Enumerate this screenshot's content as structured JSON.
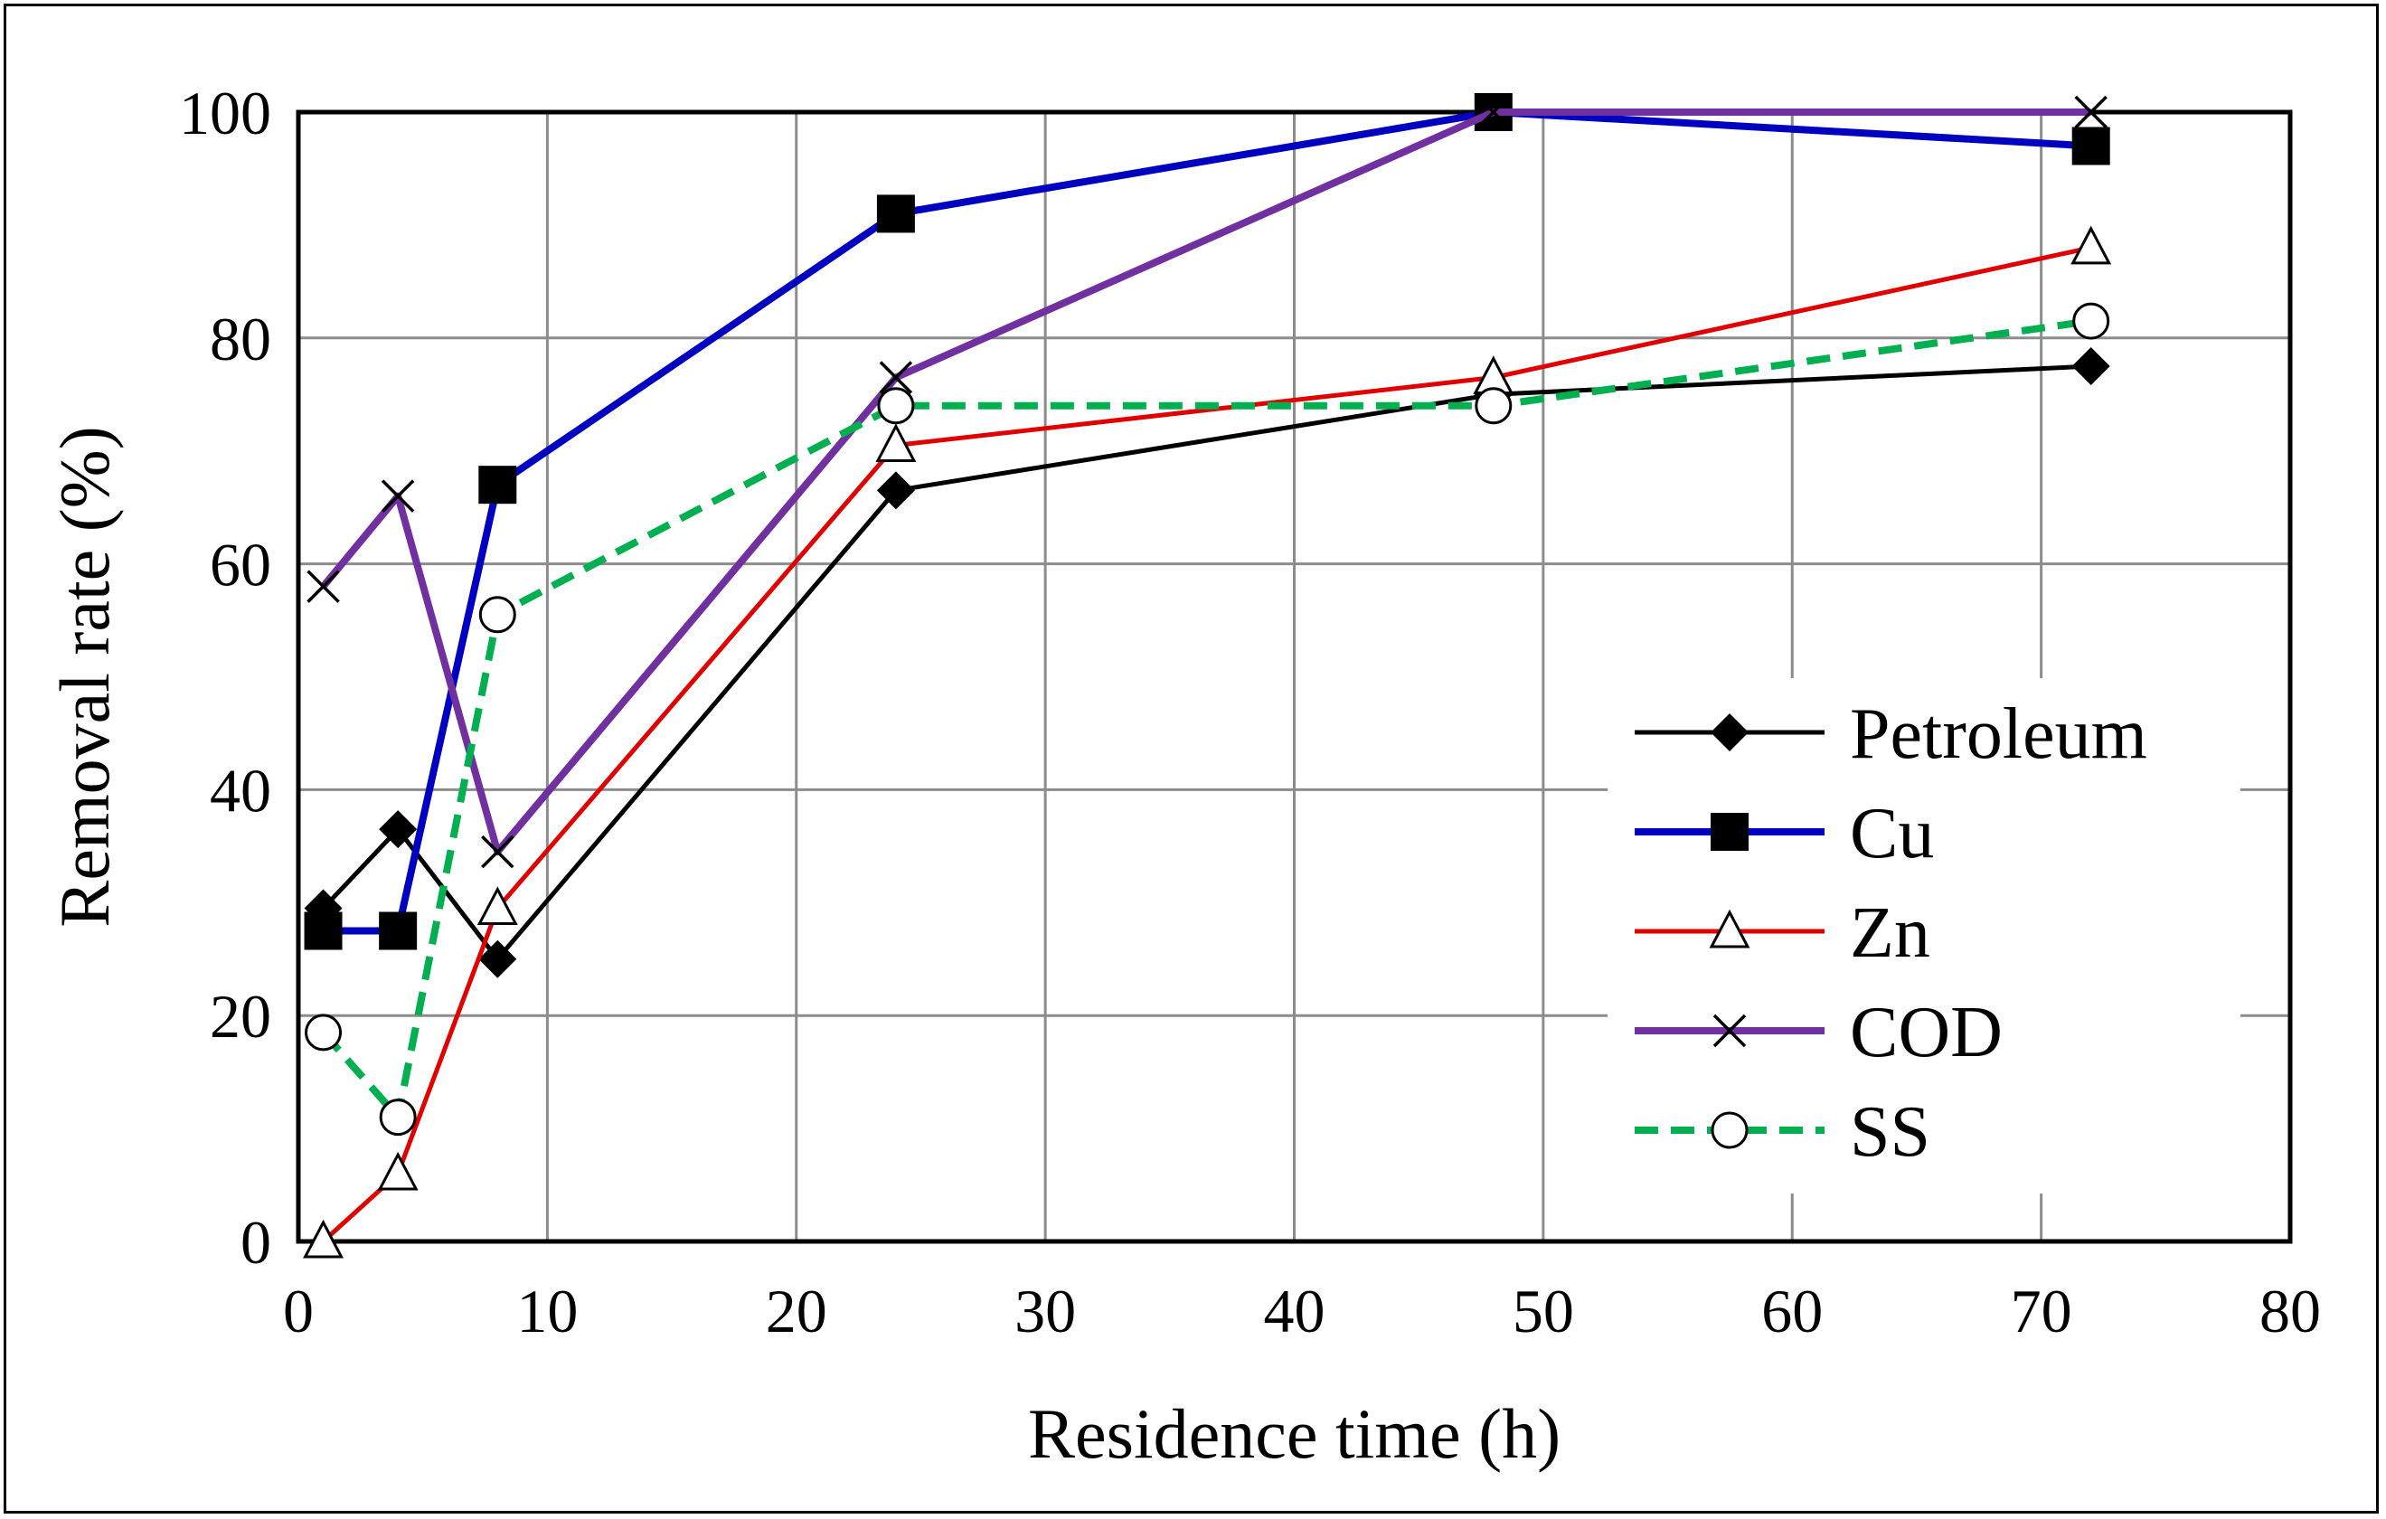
{
  "chart_data": {
    "type": "line",
    "title": "",
    "xlabel": "Residence time (h)",
    "ylabel": "Removal rate (%)",
    "xlim": [
      0,
      80
    ],
    "ylim": [
      0,
      100
    ],
    "xticks": [
      0,
      10,
      20,
      30,
      40,
      50,
      60,
      70,
      80
    ],
    "yticks": [
      0,
      20,
      40,
      60,
      80,
      100
    ],
    "grid": true,
    "legend_position": "right",
    "x": [
      1,
      4,
      8,
      24,
      48,
      72
    ],
    "series": [
      {
        "name": "Petroleum",
        "color": "#000000",
        "marker": "diamond",
        "dash": "solid",
        "values": [
          29.5,
          36.5,
          25,
          66.5,
          75,
          77.5
        ]
      },
      {
        "name": "Cu",
        "color": "#0000c0",
        "marker": "square",
        "dash": "solid",
        "values": [
          27.5,
          27.5,
          67,
          91,
          100,
          97
        ]
      },
      {
        "name": "Zn",
        "color": "#e00000",
        "marker": "triangle-open",
        "dash": "solid",
        "values": [
          0,
          6,
          29.5,
          70.5,
          76.5,
          88
        ]
      },
      {
        "name": "COD",
        "color": "#7030a0",
        "marker": "x",
        "dash": "solid",
        "values": [
          58,
          66,
          34.5,
          76.5,
          100,
          100
        ]
      },
      {
        "name": "SS",
        "color": "#00b050",
        "marker": "circle-open",
        "dash": "dashed",
        "values": [
          18.5,
          11,
          55.5,
          74,
          74,
          81.5
        ]
      }
    ]
  }
}
